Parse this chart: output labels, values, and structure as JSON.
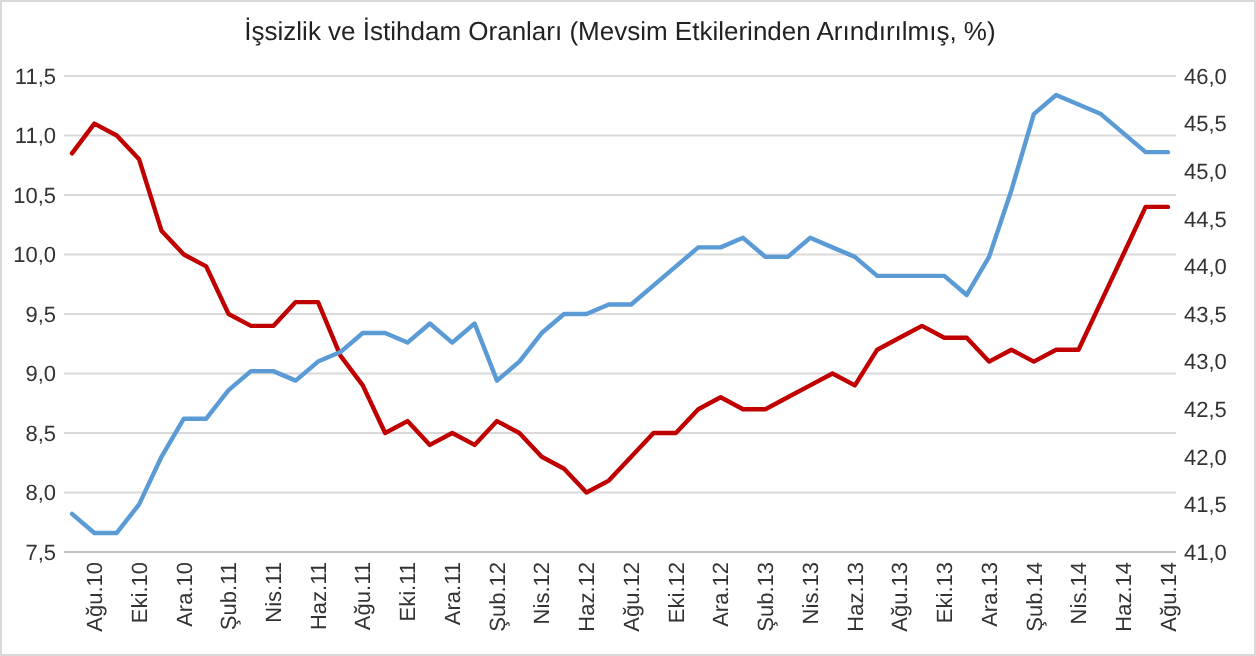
{
  "chart_data": {
    "type": "line",
    "title": "İşsizlik ve İstihdam Oranları (Mevsim Etkilerinden Arındırılmış, %)",
    "categories": [
      null,
      "Ağu.10",
      null,
      "Eki.10",
      null,
      "Ara.10",
      null,
      "Şub.11",
      null,
      "Nis.11",
      null,
      "Haz.11",
      null,
      "Ağu.11",
      null,
      "Eki.11",
      null,
      "Ara.11",
      null,
      "Şub.12",
      null,
      "Nis.12",
      null,
      "Haz.12",
      null,
      "Ağu.12",
      null,
      "Eki.12",
      null,
      "Ara.12",
      null,
      "Şub.13",
      null,
      "Nis.13",
      null,
      "Haz.13",
      null,
      "Ağu.13",
      null,
      "Eki.13",
      null,
      "Ara.13",
      null,
      "Şub.14",
      null,
      "Nis.14",
      null,
      "Haz.14",
      null,
      "Ağu.14"
    ],
    "series": [
      {
        "color": "#c00000",
        "values": [
          10.85,
          11.1,
          11.0,
          10.8,
          10.2,
          10.0,
          9.9,
          9.5,
          9.4,
          9.4,
          9.6,
          9.6,
          9.15,
          8.9,
          8.5,
          8.6,
          8.4,
          8.5,
          8.4,
          8.6,
          8.5,
          8.3,
          8.2,
          8.0,
          8.1,
          8.3,
          8.5,
          8.5,
          8.7,
          8.8,
          8.7,
          8.7,
          8.8,
          8.9,
          9.0,
          8.9,
          9.2,
          9.3,
          9.4,
          9.3,
          9.3,
          9.1,
          9.2,
          9.1,
          9.2,
          9.2,
          9.6,
          10.0,
          10.4,
          10.4
        ]
      },
      {
        "color": "#5b9bd5",
        "axis": "y2",
        "values": [
          41.4,
          41.2,
          41.2,
          41.5,
          42.0,
          42.4,
          42.4,
          42.7,
          42.9,
          42.9,
          42.8,
          43.0,
          43.1,
          43.3,
          43.3,
          43.2,
          43.4,
          43.2,
          43.4,
          42.8,
          43.0,
          43.3,
          43.5,
          43.5,
          43.6,
          43.6,
          43.8,
          44.0,
          44.2,
          44.2,
          44.3,
          44.1,
          44.1,
          44.3,
          44.2,
          44.1,
          43.9,
          43.9,
          43.9,
          43.9,
          43.7,
          44.1,
          44.8,
          45.6,
          45.8,
          45.7,
          45.6,
          45.4,
          45.2,
          45.2
        ]
      }
    ],
    "ylim": [
      7.5,
      11.5
    ],
    "yticks": [
      {
        "value": 7.5,
        "label": "7,5"
      },
      {
        "value": 8,
        "label": "8,0"
      },
      {
        "value": 8.5,
        "label": "8,5"
      },
      {
        "value": 9,
        "label": "9,0"
      },
      {
        "value": 9.5,
        "label": "9,5"
      },
      {
        "value": 10,
        "label": "10,0"
      },
      {
        "value": 10.5,
        "label": "10,5"
      },
      {
        "value": 11,
        "label": "11,0"
      },
      {
        "value": 11.5,
        "label": "11,5"
      }
    ],
    "y2lim": [
      41,
      46
    ],
    "y2ticks": [
      {
        "value": 41,
        "label": "41,0"
      },
      {
        "value": 41.5,
        "label": "41,5"
      },
      {
        "value": 42,
        "label": "42,0"
      },
      {
        "value": 42.5,
        "label": "42,5"
      },
      {
        "value": 43,
        "label": "43,0"
      },
      {
        "value": 43.5,
        "label": "43,5"
      },
      {
        "value": 44,
        "label": "44,0"
      },
      {
        "value": 44.5,
        "label": "44,5"
      },
      {
        "value": 45,
        "label": "45,0"
      },
      {
        "value": 45.5,
        "label": "45,5"
      },
      {
        "value": 46,
        "label": "46,0"
      }
    ],
    "grid": "y",
    "marker": "none",
    "line_style": "solid"
  }
}
